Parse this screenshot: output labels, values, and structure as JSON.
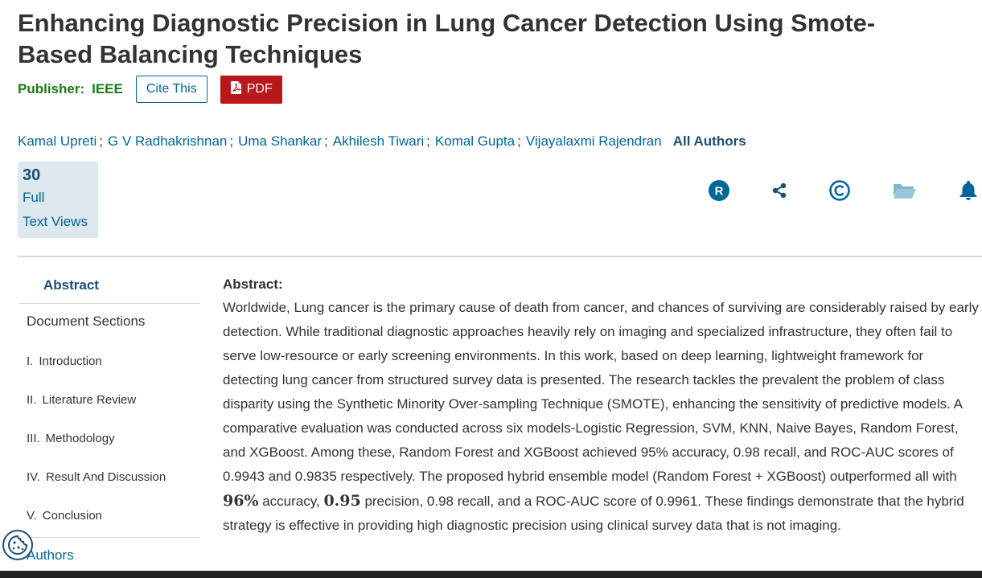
{
  "article": {
    "title": "Enhancing Diagnostic Precision in Lung Cancer Detection Using Smote-Based Balancing Techniques",
    "publisher_label": "Publisher:",
    "publisher_name": "IEEE",
    "cite_label": "Cite This",
    "pdf_label": "PDF"
  },
  "authors": {
    "list": [
      "Kamal Upreti",
      "G V Radhakrishnan",
      "Uma Shankar",
      "Akhilesh Tiwari",
      "Komal Gupta",
      "Vijayalaxmi Rajendran"
    ],
    "separator": ";",
    "all_authors_label": "All Authors"
  },
  "metrics": {
    "count": "30",
    "label_line1": "Full",
    "label_line2": "Text Views"
  },
  "icons": [
    "rights-icon",
    "share-icon",
    "copyright-icon",
    "folder-icon",
    "alert-bell-icon"
  ],
  "colors": {
    "link": "#006699",
    "publisher_green": "#1a7a1a",
    "pdf_red": "#b8181a",
    "metric_bg": "#dde8ef",
    "dark_blue": "#1b4f72"
  },
  "nav": {
    "abstract_label": "Abstract",
    "document_sections_label": "Document Sections",
    "sections": [
      {
        "num": "I.",
        "label": "Introduction"
      },
      {
        "num": "II.",
        "label": "Literature Review"
      },
      {
        "num": "III.",
        "label": "Methodology"
      },
      {
        "num": "IV.",
        "label": "Result And Discussion"
      },
      {
        "num": "V.",
        "label": "Conclusion"
      }
    ],
    "authors_label": "Authors"
  },
  "abstract": {
    "heading": "Abstract:",
    "text_part1": "Worldwide, Lung cancer is the primary cause of death from cancer, and chances of surviving are considerably raised by early detection. While traditional diagnostic approaches heavily rely on imaging and specialized infrastructure, they often fail to serve low-resource or early screening environments. In this work, based on deep learning, lightweight framework for detecting lung cancer from structured survey data is presented. The research tackles the prevalent the problem of class disparity using the Synthetic Minority Over-sampling Technique (SMOTE), enhancing the sensitivity of predictive models. A comparative evaluation was conducted across six models-Logistic Regression, SVM, KNN, Naive Bayes, Random Forest, and XGBoost. Among these, Random Forest and XGBoost achieved 95% accuracy, 0.98 recall, and ROC-AUC scores of 0.9943 and 0.9835 respectively. The proposed hybrid ensemble model (Random Forest + XGBoost) outperformed all with ",
    "math1": "96%",
    "text_part2": " accuracy, ",
    "math2": "0.95",
    "text_part3": " precision, 0.98 recall, and a ROC-AUC score of 0.9961. These findings demonstrate that the hybrid strategy is effective in providing high diagnostic precision using clinical survey data that is not imaging."
  }
}
